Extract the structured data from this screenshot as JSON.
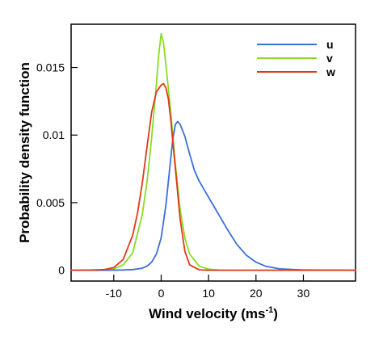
{
  "chart_data": {
    "type": "line",
    "xlabel": "Wind velocity (ms",
    "xlabel_superscript": "-1",
    "xlabel_suffix": ")",
    "ylabel": "Probability density function",
    "xlim": [
      -19,
      41
    ],
    "ylim": [
      -0.0008,
      0.0182
    ],
    "x_ticks": [
      -10,
      0,
      10,
      20,
      30
    ],
    "x_tick_labels": [
      "-10",
      "0",
      "10",
      "20",
      "30"
    ],
    "y_ticks": [
      0,
      0.005,
      0.01,
      0.015
    ],
    "y_tick_labels": [
      "0",
      "0.005",
      "0.01",
      "0.015"
    ],
    "legend_position": "top-right",
    "grid": false,
    "series": [
      {
        "name": "u",
        "color": "#3a6fd8",
        "x": [
          -19,
          -12,
          -8,
          -6,
          -4,
          -3,
          -2,
          -1,
          0,
          1,
          2,
          2.5,
          3,
          3.5,
          4,
          5,
          6,
          7,
          8,
          10,
          12,
          14,
          16,
          18,
          20,
          22,
          25,
          30,
          41
        ],
        "y": [
          0,
          0,
          2e-05,
          5e-05,
          0.00015,
          0.0003,
          0.0006,
          0.0012,
          0.0024,
          0.0048,
          0.0082,
          0.0098,
          0.0108,
          0.011,
          0.0108,
          0.0099,
          0.0086,
          0.0074,
          0.0066,
          0.0054,
          0.0042,
          0.003,
          0.0019,
          0.0011,
          0.0006,
          0.0003,
          0.0001,
          2e-05,
          0
        ]
      },
      {
        "name": "v",
        "color": "#88dd22",
        "x": [
          -19,
          -14,
          -10,
          -8,
          -6,
          -4,
          -3,
          -2,
          -1,
          -0.5,
          0,
          0.5,
          1,
          2,
          3,
          4,
          5,
          6,
          8,
          10,
          12,
          15,
          41
        ],
        "y": [
          0,
          0,
          0.0001,
          0.0004,
          0.0013,
          0.0041,
          0.0065,
          0.0098,
          0.0138,
          0.016,
          0.0175,
          0.0168,
          0.0152,
          0.0118,
          0.0078,
          0.0045,
          0.0024,
          0.0012,
          0.0003,
          8e-05,
          2e-05,
          0,
          0
        ]
      },
      {
        "name": "w",
        "color": "#e0381c",
        "x": [
          -19,
          -15,
          -12,
          -10,
          -8,
          -6,
          -5,
          -4,
          -3,
          -2,
          -1,
          0,
          0.5,
          1,
          1.5,
          2,
          3,
          4,
          5,
          6,
          8,
          10,
          41
        ],
        "y": [
          0,
          1e-05,
          4e-05,
          0.0002,
          0.0008,
          0.0026,
          0.0042,
          0.0064,
          0.0091,
          0.0117,
          0.0132,
          0.0137,
          0.0138,
          0.0135,
          0.0127,
          0.0112,
          0.0075,
          0.0038,
          0.0014,
          0.0004,
          3e-05,
          0,
          0
        ]
      }
    ]
  }
}
